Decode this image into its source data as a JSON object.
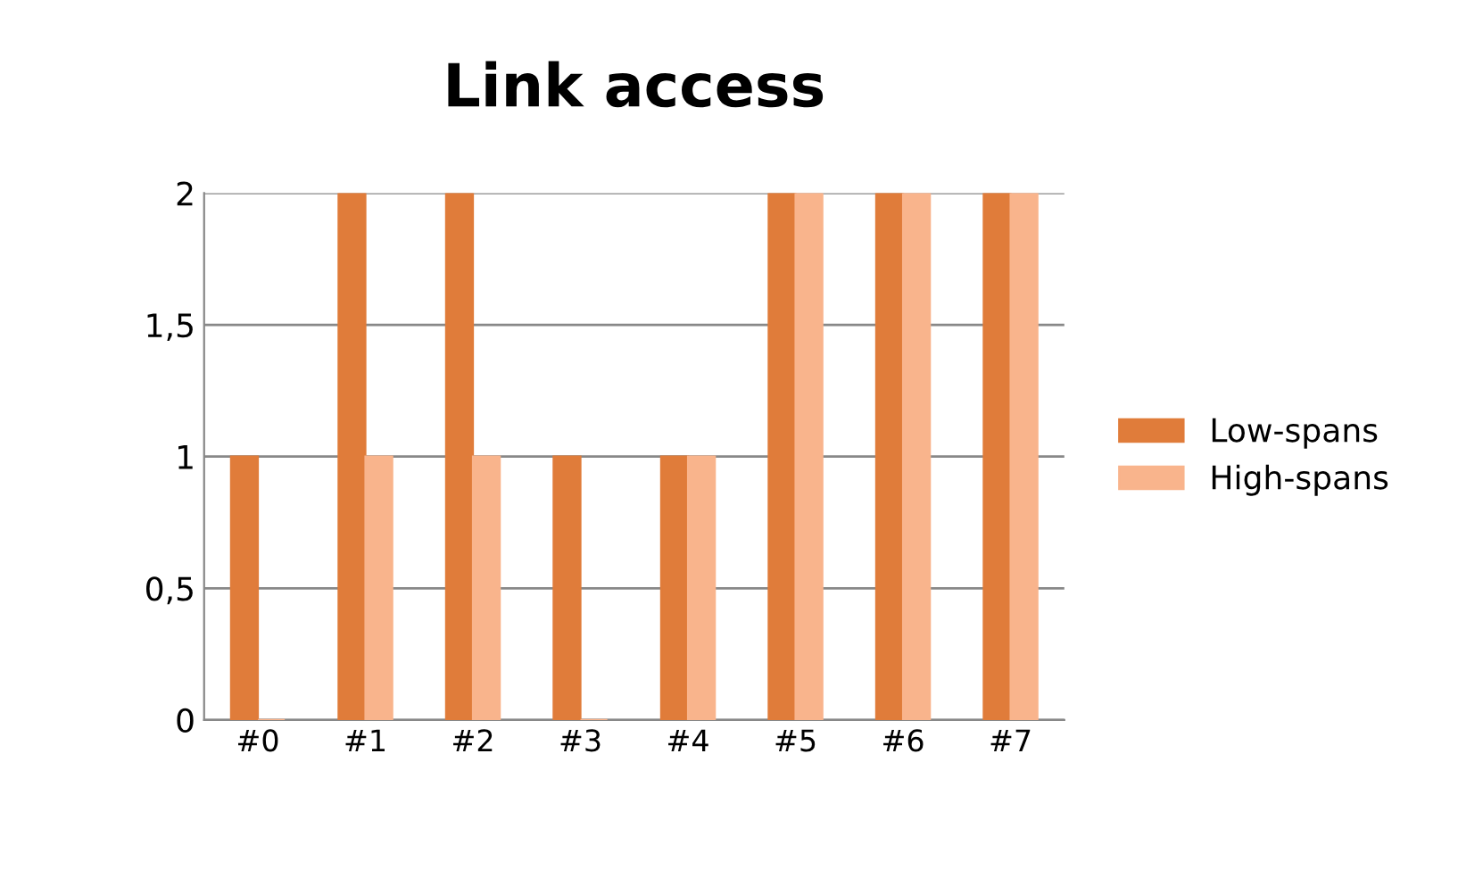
{
  "chart_data": {
    "type": "bar",
    "title": "Link access",
    "categories": [
      "#0",
      "#1",
      "#2",
      "#3",
      "#4",
      "#5",
      "#6",
      "#7"
    ],
    "series": [
      {
        "name": "Low-spans",
        "color": "#e07c3a",
        "values": [
          1,
          2,
          2,
          1,
          1,
          2,
          2,
          2
        ]
      },
      {
        "name": "High-spans",
        "color": "#f9b48c",
        "values": [
          0,
          1,
          1,
          0,
          1,
          2,
          2,
          2
        ]
      }
    ],
    "ylim": [
      0,
      2
    ],
    "yticks": [
      0,
      {
        "value": 0.5,
        "label": "0,5"
      },
      1,
      {
        "value": 1.5,
        "label": "1,5"
      },
      2
    ],
    "grid": "y",
    "legend": "right"
  }
}
